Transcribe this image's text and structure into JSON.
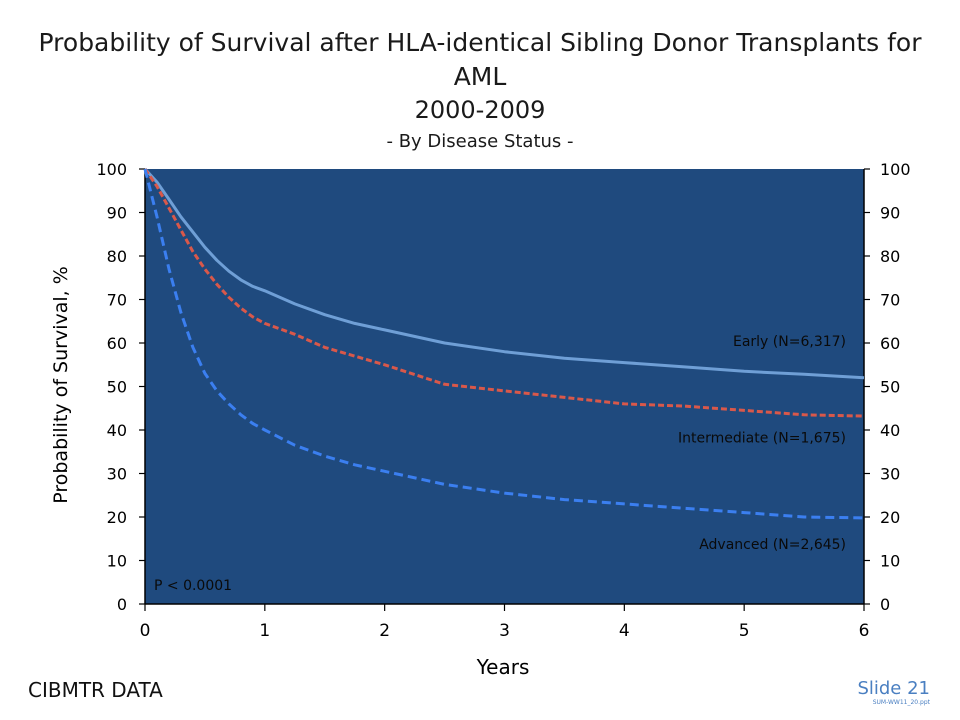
{
  "title": {
    "line1": "Probability of Survival after HLA-identical Sibling Donor Transplants for",
    "line2": "AML",
    "line3": "2000-2009",
    "line4": "- By Disease Status -"
  },
  "footer": {
    "source": "CIBMTR DATA",
    "slide": "Slide 21",
    "code": "SUM-WW11_20.ppt"
  },
  "colors": {
    "plot_bg": "#1f4a7e",
    "early": "#6f9fd6",
    "intermediate": "#d9584a",
    "advanced": "#3b7ff0",
    "label_text": "#0a0a0a"
  },
  "chart_data": {
    "type": "line",
    "title": "Probability of Survival after HLA-identical Sibling Donor Transplants for AML 2000-2009 - By Disease Status -",
    "xlabel": "Years",
    "ylabel": "Probability of Survival, %",
    "xlim": [
      0,
      6
    ],
    "ylim": [
      0,
      100
    ],
    "x_ticks": [
      0,
      1,
      2,
      3,
      4,
      5,
      6
    ],
    "y_ticks": [
      0,
      10,
      20,
      30,
      40,
      50,
      60,
      70,
      80,
      90,
      100
    ],
    "right_axis_mirrored": true,
    "grid": false,
    "annotation": "P < 0.0001",
    "series": [
      {
        "name": "Early (N=6,317)",
        "style": "solid",
        "x": [
          0,
          0.1,
          0.2,
          0.3,
          0.4,
          0.5,
          0.6,
          0.7,
          0.8,
          0.9,
          1.0,
          1.25,
          1.5,
          1.75,
          2.0,
          2.5,
          3.0,
          3.5,
          4.0,
          4.5,
          5.0,
          5.5,
          6.0
        ],
        "values": [
          100,
          97,
          93,
          89,
          85.5,
          82,
          79,
          76.5,
          74.5,
          73,
          72,
          69,
          66.5,
          64.5,
          63,
          60,
          58,
          56.5,
          55.5,
          54.5,
          53.5,
          52.8,
          52
        ]
      },
      {
        "name": "Intermediate (N=1,675)",
        "style": "dashed",
        "x": [
          0,
          0.1,
          0.2,
          0.3,
          0.4,
          0.5,
          0.6,
          0.7,
          0.8,
          0.9,
          1.0,
          1.25,
          1.5,
          1.75,
          2.0,
          2.5,
          3.0,
          3.5,
          4.0,
          4.5,
          5.0,
          5.5,
          6.0
        ],
        "values": [
          100,
          96,
          91,
          86,
          81,
          77,
          73.5,
          70.5,
          68,
          66,
          64.5,
          62,
          59,
          57,
          55,
          50.5,
          49,
          47.5,
          46,
          45.5,
          44.5,
          43.5,
          43.2
        ]
      },
      {
        "name": "Advanced (N=2,645)",
        "style": "dashed",
        "x": [
          0,
          0.1,
          0.2,
          0.3,
          0.4,
          0.5,
          0.6,
          0.7,
          0.8,
          0.9,
          1.0,
          1.25,
          1.5,
          1.75,
          2.0,
          2.5,
          3.0,
          3.5,
          4.0,
          4.5,
          5.0,
          5.5,
          6.0
        ],
        "values": [
          100,
          89,
          77,
          67,
          59,
          53,
          49,
          46,
          43.5,
          41.5,
          40,
          36.5,
          34,
          32,
          30.5,
          27.5,
          25.5,
          24,
          23,
          22,
          21,
          20,
          19.8
        ]
      }
    ]
  }
}
